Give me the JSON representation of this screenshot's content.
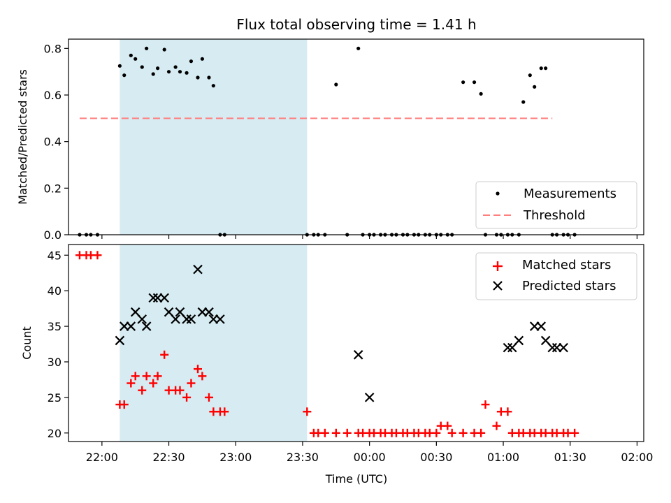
{
  "chart_data": [
    {
      "type": "scatter",
      "title": "Flux total observing time = 1.41 h",
      "xlabel": "",
      "ylabel": "Matched/Predicted stars",
      "ylim": [
        0,
        0.84
      ],
      "xlim": [
        "21:45",
        "02:03"
      ],
      "yticks": [
        0.0,
        0.2,
        0.4,
        0.6,
        0.8
      ],
      "ytick_labels": [
        "0.0",
        "0.2",
        "0.4",
        "0.6",
        "0.8"
      ],
      "legend": {
        "placement": "lower-right",
        "entries": [
          "Measurements",
          "Threshold"
        ]
      },
      "highlight_span": {
        "start": "22:08",
        "end": "23:32",
        "color": "#add8e6"
      },
      "series": [
        {
          "name": "Measurements",
          "marker": "dot",
          "color": "#000000",
          "x": [
            "21:50",
            "21:53",
            "21:55",
            "21:58",
            "22:08",
            "22:10",
            "22:13",
            "22:15",
            "22:18",
            "22:20",
            "22:23",
            "22:25",
            "22:28",
            "22:30",
            "22:33",
            "22:35",
            "22:38",
            "22:40",
            "22:43",
            "22:45",
            "22:48",
            "22:50",
            "22:53",
            "22:55",
            "23:32",
            "23:35",
            "23:37",
            "23:40",
            "23:45",
            "23:50",
            "23:55",
            "23:57",
            "24:00",
            "24:02",
            "24:05",
            "24:07",
            "24:10",
            "24:12",
            "24:15",
            "24:17",
            "24:20",
            "24:22",
            "24:25",
            "24:27",
            "24:30",
            "24:32",
            "24:35",
            "24:37",
            "24:42",
            "24:47",
            "24:50",
            "24:52",
            "24:57",
            "24:59",
            "25:02",
            "25:04",
            "25:07",
            "25:09",
            "25:12",
            "25:14",
            "25:17",
            "25:19",
            "25:22",
            "25:24",
            "25:27",
            "25:29",
            "25:32"
          ],
          "y": [
            0,
            0,
            0,
            0,
            0.725,
            0.685,
            0.77,
            0.755,
            0.72,
            0.8,
            0.69,
            0.715,
            0.795,
            0.7,
            0.72,
            0.7,
            0.695,
            0.745,
            0.675,
            0.755,
            0.675,
            0.64,
            0,
            0,
            0,
            0,
            0,
            0,
            0.645,
            0,
            0.8,
            0,
            0,
            0,
            0,
            0,
            0,
            0,
            0,
            0,
            0,
            0,
            0,
            0,
            0,
            0,
            0,
            0,
            0.655,
            0.655,
            0.605,
            0,
            0,
            0,
            0,
            0,
            0,
            0.57,
            0.685,
            0.635,
            0.715,
            0.715,
            0,
            0,
            0,
            0,
            0
          ]
        },
        {
          "name": "Threshold",
          "style": "dashed",
          "color": "#ff7f7f",
          "x": [
            "21:50",
            "25:22"
          ],
          "y": [
            0.5,
            0.5
          ]
        }
      ]
    },
    {
      "type": "scatter",
      "title": "",
      "xlabel": "Time (UTC)",
      "ylabel": "Count",
      "ylim": [
        18.8,
        46.5
      ],
      "xlim": [
        "21:45",
        "02:03"
      ],
      "xticks": [
        "22:00",
        "22:30",
        "23:00",
        "23:30",
        "00:00",
        "00:30",
        "01:00",
        "01:30",
        "02:00"
      ],
      "yticks": [
        20,
        25,
        30,
        35,
        40,
        45
      ],
      "ytick_labels": [
        "20",
        "25",
        "30",
        "35",
        "40",
        "45"
      ],
      "legend": {
        "placement": "upper-right",
        "entries": [
          "Matched stars",
          "Predicted stars"
        ]
      },
      "highlight_span": {
        "start": "22:08",
        "end": "23:32",
        "color": "#add8e6"
      },
      "series": [
        {
          "name": "Matched stars",
          "marker": "plus",
          "color": "#ff0000",
          "x": [
            "21:50",
            "21:53",
            "21:55",
            "21:58",
            "22:08",
            "22:10",
            "22:13",
            "22:15",
            "22:18",
            "22:20",
            "22:23",
            "22:25",
            "22:28",
            "22:30",
            "22:33",
            "22:35",
            "22:38",
            "22:40",
            "22:43",
            "22:45",
            "22:48",
            "22:50",
            "22:53",
            "22:55",
            "23:32",
            "23:35",
            "23:37",
            "23:40",
            "23:45",
            "23:50",
            "23:55",
            "23:57",
            "24:00",
            "24:02",
            "24:05",
            "24:07",
            "24:10",
            "24:12",
            "24:15",
            "24:17",
            "24:20",
            "24:22",
            "24:25",
            "24:27",
            "24:30",
            "24:32",
            "24:35",
            "24:37",
            "24:42",
            "24:47",
            "24:50",
            "24:52",
            "24:57",
            "24:59",
            "25:02",
            "25:04",
            "25:07",
            "25:09",
            "25:12",
            "25:14",
            "25:17",
            "25:19",
            "25:22",
            "25:24",
            "25:27",
            "25:29",
            "25:32"
          ],
          "y": [
            45,
            45,
            45,
            45,
            24,
            24,
            27,
            28,
            26,
            28,
            27,
            28,
            31,
            26,
            26,
            26,
            25,
            27,
            29,
            28,
            25,
            23,
            23,
            23,
            23,
            20,
            20,
            20,
            20,
            20,
            20,
            20,
            20,
            20,
            20,
            20,
            20,
            20,
            20,
            20,
            20,
            20,
            20,
            20,
            20,
            21,
            21,
            20,
            20,
            20,
            20,
            24,
            21,
            23,
            23,
            20,
            20,
            20,
            20,
            20,
            20,
            20,
            20,
            20,
            20,
            20,
            20
          ]
        },
        {
          "name": "Predicted stars",
          "marker": "x",
          "color": "#000000",
          "x": [
            "22:08",
            "22:10",
            "22:13",
            "22:15",
            "22:18",
            "22:20",
            "22:23",
            "22:25",
            "22:28",
            "22:30",
            "22:33",
            "22:35",
            "22:38",
            "22:40",
            "22:43",
            "22:45",
            "22:48",
            "22:50",
            "22:53",
            "23:55",
            "24:00",
            "25:02",
            "25:04",
            "25:07",
            "25:14",
            "25:17",
            "25:19",
            "25:22",
            "25:24",
            "25:27"
          ],
          "y": [
            33,
            35,
            35,
            37,
            36,
            35,
            39,
            39,
            39,
            37,
            36,
            37,
            36,
            36,
            43,
            37,
            37,
            36,
            36,
            31,
            25,
            32,
            32,
            33,
            35,
            35,
            33,
            32,
            32,
            32
          ]
        }
      ]
    }
  ]
}
